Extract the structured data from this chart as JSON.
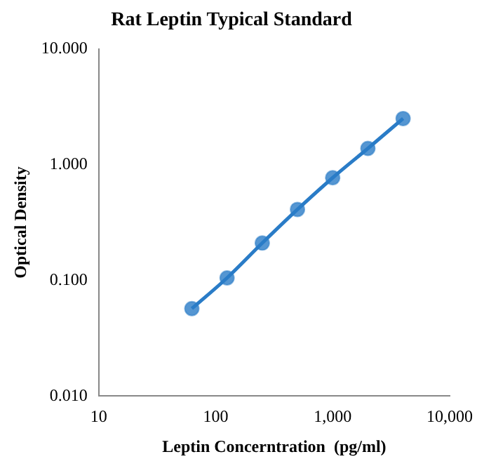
{
  "chart_data": {
    "type": "line",
    "title": "Rat Leptin Typical Standard",
    "xlabel": "Leptin Concerntration  (pg/ml)",
    "ylabel": "Optical Density",
    "x": [
      62.5,
      125,
      250,
      500,
      1000,
      2000,
      4000
    ],
    "series": [
      {
        "color": "#2a7cc7",
        "values": [
          0.057,
          0.105,
          0.21,
          0.41,
          0.77,
          1.38,
          2.5
        ]
      }
    ],
    "log": "xy",
    "xlim": [
      10,
      10000
    ],
    "xticks": [
      {
        "value": 10,
        "label": "10"
      },
      {
        "value": 100,
        "label": "100"
      },
      {
        "value": 1000,
        "label": "1,000"
      },
      {
        "value": 10000,
        "label": "10,000"
      }
    ],
    "ylim": [
      0.01,
      10
    ],
    "yticks": [
      {
        "value": 0.01,
        "label": "0.010"
      },
      {
        "value": 0.1,
        "label": "0.100"
      },
      {
        "value": 1,
        "label": "1.000"
      },
      {
        "value": 10,
        "label": "10.000"
      }
    ],
    "grid": false,
    "legend": false,
    "marker": "circle",
    "line_style": "solid"
  }
}
